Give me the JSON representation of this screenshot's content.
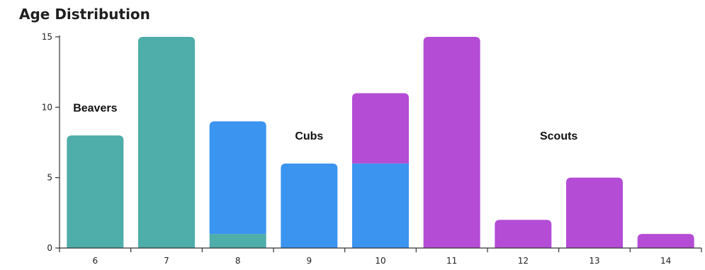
{
  "chart_data": {
    "type": "bar",
    "title": "Age Distribution",
    "xlabel": "",
    "ylabel": "",
    "ylim": [
      0,
      15
    ],
    "y_ticks": [
      0,
      5,
      10,
      15
    ],
    "categories": [
      "6",
      "7",
      "8",
      "9",
      "10",
      "11",
      "12",
      "13",
      "14"
    ],
    "stacked": true,
    "series": [
      {
        "name": "Beavers",
        "color": "#4FADAA",
        "values": [
          8,
          15,
          1,
          0,
          0,
          0,
          0,
          0,
          0
        ]
      },
      {
        "name": "Cubs",
        "color": "#3A94F0",
        "values": [
          0,
          0,
          8,
          6,
          6,
          0,
          0,
          0,
          0
        ]
      },
      {
        "name": "Scouts",
        "color": "#B44CD6",
        "values": [
          0,
          0,
          0,
          0,
          5,
          15,
          2,
          5,
          1
        ]
      }
    ],
    "group_labels": [
      {
        "text": "Beavers",
        "near_category": "6",
        "y": 10
      },
      {
        "text": "Cubs",
        "near_category": "9",
        "y": 8
      },
      {
        "text": "Scouts",
        "near_category": "12.5",
        "y": 8
      }
    ],
    "grid": false,
    "legend": "none"
  }
}
